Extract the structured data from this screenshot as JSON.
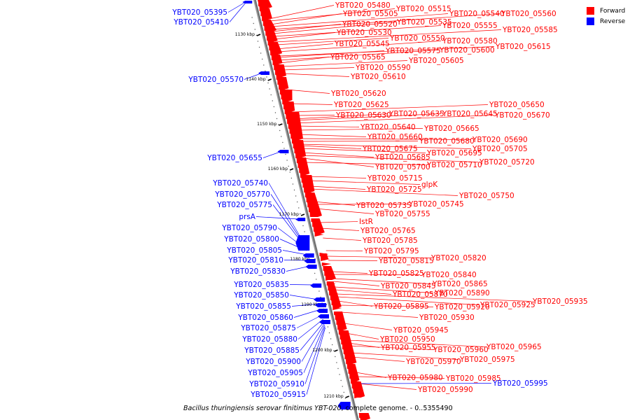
{
  "legend": [
    {
      "label": "Forward",
      "color": "#ff0000"
    },
    {
      "label": "Reverse",
      "color": "#0000ff"
    }
  ],
  "caption": {
    "organism": "Bacillus thuringiensis serovar finitimus YBT-020",
    "rest": ", complete genome. - 0..5355490"
  },
  "ticks": [
    "1130 kbp",
    "1140 kbp",
    "1150 kbp",
    "1160 kbp",
    "1170 kbp",
    "1180 kbp",
    "1190 kbp",
    "1200 kbp",
    "1210 kbp"
  ],
  "forward_labels": [
    "YBT020_05480",
    "YBT020_05505",
    "YBT020_05515",
    "YBT020_05540",
    "YBT020_05560",
    "YBT020_05520",
    "YBT020_05535",
    "YBT020_05555",
    "YBT020_05585",
    "YBT020_05530",
    "YBT020_05550",
    "YBT020_05545",
    "YBT020_05580",
    "YBT020_05615",
    "YBT020_05575",
    "YBT020_05600",
    "YBT020_05565",
    "YBT020_05605",
    "YBT020_05590",
    "YBT020_05610",
    "YBT020_05620",
    "YBT020_05625",
    "YBT020_05650",
    "YBT020_05630",
    "YBT020_05635",
    "YBT020_05645",
    "YBT020_05670",
    "YBT020_05640",
    "YBT020_05665",
    "YBT020_05660",
    "YBT020_05690",
    "YBT020_05680",
    "YBT020_05705",
    "YBT020_05675",
    "YBT020_05695",
    "YBT020_05685",
    "YBT020_05720",
    "YBT020_05700",
    "YBT020_05710",
    "YBT020_05715",
    "glpK",
    "YBT020_05725",
    "YBT020_05750",
    "YBT020_05735",
    "YBT020_05745",
    "YBT020_05755",
    "IstR",
    "YBT020_05765",
    "YBT020_05785",
    "YBT020_05795",
    "YBT020_05820",
    "YBT020_05815",
    "YBT020_05825",
    "YBT020_05840",
    "YBT020_05865",
    "YBT020_05845",
    "YBT020_05890",
    "YBT020_05870",
    "YBT020_05935",
    "YBT020_05925",
    "YBT020_05895",
    "YBT020_05920",
    "YBT020_05930",
    "YBT020_05945",
    "YBT020_05950",
    "YBT020_05965",
    "YBT020_05955",
    "YBT020_05960",
    "YBT020_05975",
    "YBT020_05970",
    "YBT020_05980",
    "YBT020_05985",
    "YBT020_05990"
  ],
  "reverse_labels": [
    "YBT020_05395",
    "YBT020_05410",
    "YBT020_05570",
    "YBT020_05655",
    "YBT020_05740",
    "YBT020_05770",
    "YBT020_05775",
    "prsA",
    "YBT020_05790",
    "YBT020_05800",
    "YBT020_05805",
    "YBT020_05810",
    "YBT020_05830",
    "YBT020_05835",
    "YBT020_05850",
    "YBT020_05855",
    "YBT020_05860",
    "YBT020_05875",
    "YBT020_05880",
    "YBT020_05885",
    "YBT020_05900",
    "YBT020_05905",
    "YBT020_05910",
    "YBT020_05915",
    "YBT020_05995"
  ]
}
